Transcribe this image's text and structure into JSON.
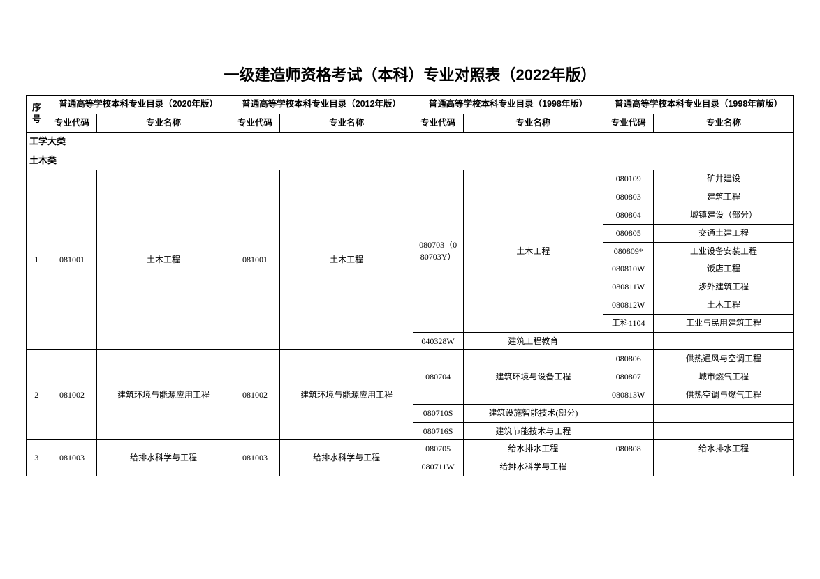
{
  "title": "一级建造师资格考试（本科）专业对照表（2022年版）",
  "headers": {
    "seq": "序号",
    "catalogs": [
      "普通高等学校本科专业目录（2020年版）",
      "普通高等学校本科专业目录（2012年版）",
      "普通高等学校本科专业目录（1998年版）",
      "普通高等学校本科专业目录（1998年前版）"
    ],
    "code": "专业代码",
    "name": "专业名称"
  },
  "sections": {
    "eng_major": "工学大类",
    "civil": "土木类"
  },
  "rows": [
    {
      "seq": "1",
      "c2020_code": "081001",
      "c2020_name": "土木工程",
      "c2012_code": "081001",
      "c2012_name": "土木工程",
      "c1998": [
        {
          "code": "080703（080703Y）",
          "name": "土木工程",
          "pre": [
            {
              "code": "080109",
              "name": "矿井建设"
            },
            {
              "code": "080803",
              "name": "建筑工程"
            },
            {
              "code": "080804",
              "name": "城镇建设（部分）"
            },
            {
              "code": "080805",
              "name": "交通土建工程"
            },
            {
              "code": "080809*",
              "name": "工业设备安装工程"
            },
            {
              "code": "080810W",
              "name": "饭店工程"
            },
            {
              "code": "080811W",
              "name": "涉外建筑工程"
            },
            {
              "code": "080812W",
              "name": "土木工程"
            },
            {
              "code": "工科1104",
              "name": "工业与民用建筑工程"
            }
          ]
        },
        {
          "code": "040328W",
          "name": "建筑工程教育",
          "pre": [
            {
              "code": "",
              "name": ""
            }
          ]
        }
      ]
    },
    {
      "seq": "2",
      "c2020_code": "081002",
      "c2020_name": "建筑环境与能源应用工程",
      "c2012_code": "081002",
      "c2012_name": "建筑环境与能源应用工程",
      "c1998": [
        {
          "code": "080704",
          "name": "建筑环境与设备工程",
          "pre": [
            {
              "code": "080806",
              "name": "供热通风与空调工程"
            },
            {
              "code": "080807",
              "name": "城市燃气工程"
            },
            {
              "code": "080813W",
              "name": "供热空调与燃气工程"
            }
          ]
        },
        {
          "code": "080710S",
          "name": "建筑设施智能技术(部分)",
          "pre": [
            {
              "code": "",
              "name": ""
            }
          ]
        },
        {
          "code": "080716S",
          "name": "建筑节能技术与工程",
          "pre": [
            {
              "code": "",
              "name": ""
            }
          ]
        }
      ]
    },
    {
      "seq": "3",
      "c2020_code": "081003",
      "c2020_name": "给排水科学与工程",
      "c2012_code": "081003",
      "c2012_name": "给排水科学与工程",
      "c1998": [
        {
          "code": "080705",
          "name": "给水排水工程",
          "pre": [
            {
              "code": "080808",
              "name": "给水排水工程"
            }
          ]
        },
        {
          "code": "080711W",
          "name": "给排水科学与工程",
          "pre": [
            {
              "code": "",
              "name": ""
            }
          ]
        }
      ]
    }
  ],
  "style": {
    "border_color": "#000000",
    "background_color": "#ffffff",
    "title_fontsize": 22,
    "cell_fontsize": 12,
    "header_fontsize": 12.5
  }
}
